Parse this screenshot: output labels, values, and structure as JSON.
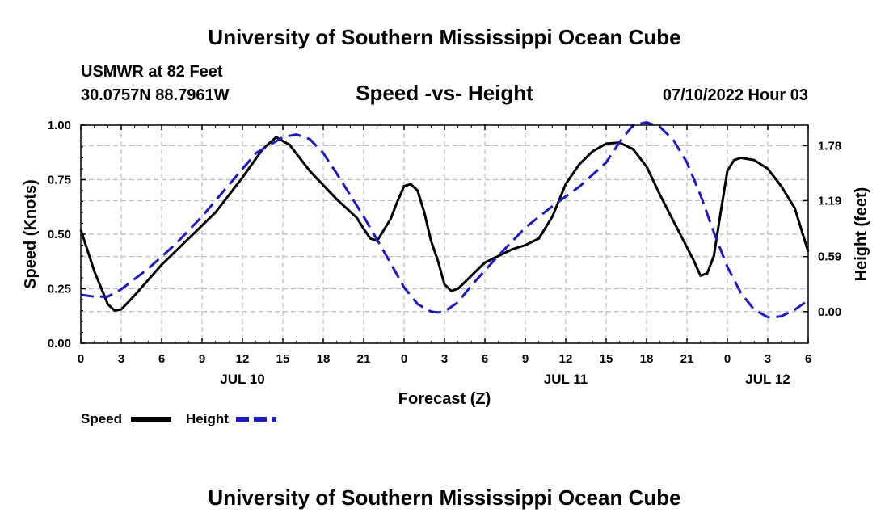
{
  "page": {
    "title_top": "University of Southern Mississippi Ocean Cube",
    "title_bottom": "University of Southern Mississippi Ocean Cube",
    "station_name": "USMWR at 82 Feet",
    "station_coords": "30.0757N  88.7961W",
    "plot_subtitle": "Speed -vs- Height",
    "run_time": "07/10/2022 Hour 03"
  },
  "chart_data": {
    "type": "line",
    "title": "Speed -vs- Height",
    "xlabel": "Forecast (Z)",
    "ylabel_left": "Speed (Knots)",
    "ylabel_right": "Height (feet)",
    "x_unit": "hours since JUL 10 00Z",
    "xlim": [
      0,
      54
    ],
    "ylim_left": [
      0,
      1
    ],
    "ylim_right": [
      -0.34,
      2.0
    ],
    "x_ticks": [
      0,
      3,
      6,
      9,
      12,
      15,
      18,
      21,
      24,
      27,
      30,
      33,
      36,
      39,
      42,
      45,
      48,
      51,
      54
    ],
    "x_tick_labels": [
      "0",
      "3",
      "6",
      "9",
      "12",
      "15",
      "18",
      "21",
      "0",
      "3",
      "6",
      "9",
      "12",
      "15",
      "18",
      "21",
      "0",
      "3",
      "6"
    ],
    "y_left_ticks": [
      0,
      0.25,
      0.5,
      0.75,
      1.0
    ],
    "y_left_tick_labels": [
      "0.00",
      "0.25",
      "0.50",
      "0.75",
      "1.00"
    ],
    "y_right_ticks": [
      0.0,
      0.59,
      1.19,
      1.78
    ],
    "y_right_tick_labels": [
      "0.00",
      "0.59",
      "1.19",
      "1.78"
    ],
    "day_labels": [
      {
        "x": 12,
        "label": "JUL 10"
      },
      {
        "x": 36,
        "label": "JUL 11"
      },
      {
        "x": 51,
        "label": "JUL 12"
      }
    ],
    "grid": true,
    "legend_position": "bottom-left",
    "series": [
      {
        "name": "Speed",
        "axis": "left",
        "color": "#000000",
        "dash": "solid",
        "x": [
          0,
          1,
          2,
          2.5,
          3,
          4,
          6,
          8,
          10,
          12,
          13.5,
          14.5,
          15.5,
          17,
          19,
          20.5,
          21,
          21.5,
          22,
          23,
          23.5,
          24,
          24.5,
          25,
          25.5,
          26,
          26.5,
          27,
          27.5,
          28,
          30,
          32,
          33,
          34,
          35,
          36,
          37,
          38,
          39,
          40,
          41,
          42,
          43,
          44,
          45,
          45.5,
          46,
          46.5,
          47,
          47.5,
          48,
          48.5,
          49,
          50,
          51,
          52,
          53,
          54
        ],
        "values": [
          0.52,
          0.33,
          0.18,
          0.15,
          0.155,
          0.22,
          0.36,
          0.48,
          0.6,
          0.76,
          0.89,
          0.945,
          0.91,
          0.79,
          0.66,
          0.575,
          0.525,
          0.48,
          0.47,
          0.57,
          0.65,
          0.72,
          0.73,
          0.7,
          0.6,
          0.47,
          0.38,
          0.27,
          0.24,
          0.25,
          0.37,
          0.43,
          0.45,
          0.48,
          0.58,
          0.73,
          0.82,
          0.88,
          0.915,
          0.92,
          0.89,
          0.81,
          0.68,
          0.56,
          0.44,
          0.38,
          0.31,
          0.32,
          0.4,
          0.6,
          0.79,
          0.84,
          0.85,
          0.84,
          0.8,
          0.72,
          0.62,
          0.42
        ]
      },
      {
        "name": "Height",
        "axis": "right",
        "color": "#1a1acc",
        "dash": "dashed",
        "x": [
          0,
          1,
          2,
          3,
          5,
          7,
          9,
          11,
          13,
          15,
          16,
          17,
          18,
          19,
          21,
          23,
          24,
          25,
          26,
          26.5,
          27,
          28,
          29,
          31,
          33,
          35,
          37,
          39,
          40,
          41,
          42,
          43,
          44,
          45,
          46,
          47,
          48,
          49,
          50,
          51,
          51.5,
          52,
          53,
          54
        ],
        "values": [
          0.18,
          0.16,
          0.16,
          0.24,
          0.46,
          0.72,
          1.02,
          1.36,
          1.7,
          1.87,
          1.9,
          1.85,
          1.7,
          1.48,
          1.02,
          0.52,
          0.26,
          0.08,
          0.0,
          -0.01,
          0.0,
          0.1,
          0.28,
          0.6,
          0.9,
          1.13,
          1.34,
          1.6,
          1.82,
          2.0,
          2.03,
          1.98,
          1.84,
          1.6,
          1.25,
          0.85,
          0.48,
          0.2,
          0.02,
          -0.06,
          -0.06,
          -0.05,
          0.02,
          0.12
        ]
      }
    ]
  }
}
